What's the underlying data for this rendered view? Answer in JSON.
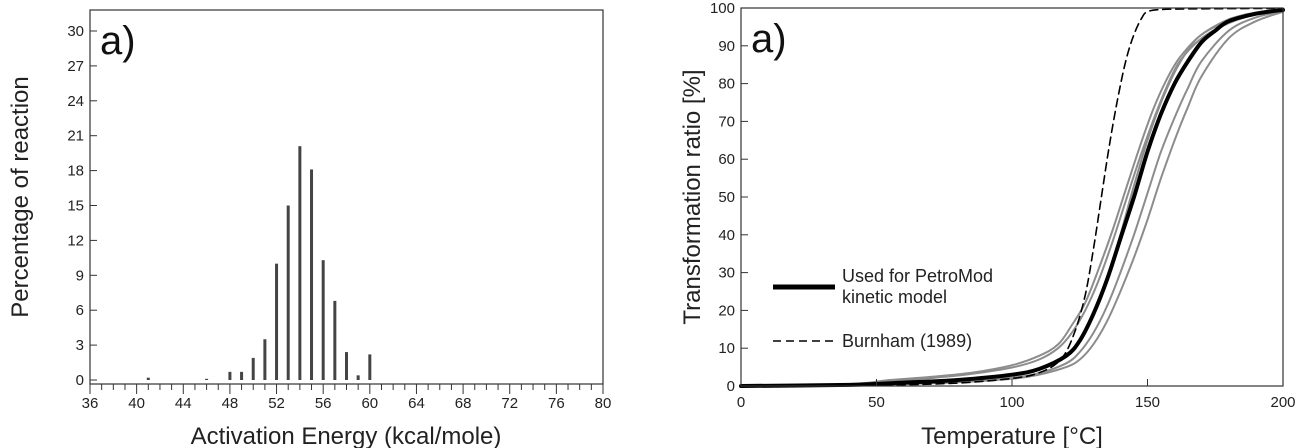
{
  "chart_data": [
    {
      "type": "bar",
      "panel_label": "a)",
      "xlabel": "Activation Energy (kcal/mole)",
      "ylabel": "Percentage of reaction",
      "xlim": [
        36,
        80
      ],
      "ylim": [
        0,
        30
      ],
      "xticks": [
        "36",
        "40",
        "44",
        "48",
        "52",
        "56",
        "60",
        "64",
        "68",
        "72",
        "76",
        "80"
      ],
      "yticks": [
        "0",
        "3",
        "6",
        "9",
        "12",
        "15",
        "18",
        "21",
        "24",
        "27",
        "30"
      ],
      "grid": false,
      "x": [
        41,
        46,
        48,
        49,
        50,
        51,
        52,
        53,
        54,
        55,
        56,
        57,
        58,
        59,
        60
      ],
      "values": [
        0.2,
        0.1,
        0.7,
        0.7,
        1.9,
        3.5,
        10.0,
        15.0,
        20.1,
        18.1,
        10.3,
        6.8,
        2.4,
        0.4,
        2.2
      ]
    },
    {
      "type": "line",
      "panel_label": "a)",
      "xlabel": "Temperature [°C]",
      "ylabel": "Transformation ratio [%]",
      "xlim": [
        0,
        200
      ],
      "ylim": [
        0,
        100
      ],
      "xticks": [
        "0",
        "50",
        "100",
        "150",
        "200"
      ],
      "yticks": [
        "0",
        "10",
        "20",
        "30",
        "40",
        "50",
        "60",
        "70",
        "80",
        "90",
        "100"
      ],
      "grid": false,
      "legend_placement": "center-left",
      "legend": [
        {
          "label_line1": "Used for PetroMod",
          "label_line2": "kinetic model",
          "style": "thick-solid",
          "color": "#000000"
        },
        {
          "label_line1": "Burnham (1989)",
          "label_line2": "",
          "style": "dashed",
          "color": "#000000"
        }
      ],
      "series": [
        {
          "style": "thick-solid",
          "color": "#000000",
          "x": [
            0,
            40,
            60,
            80,
            100,
            110,
            120,
            125,
            130,
            135,
            140,
            145,
            150,
            155,
            160,
            165,
            170,
            175,
            180,
            190,
            200
          ],
          "y": [
            0,
            0.3,
            0.9,
            1.6,
            3,
            4.5,
            8,
            12,
            19,
            28,
            39,
            50,
            62,
            72,
            80,
            86,
            91,
            94,
            96.5,
            98.5,
            99.5
          ]
        },
        {
          "style": "dashed",
          "color": "#000000",
          "x": [
            0,
            50,
            80,
            100,
            110,
            118,
            123,
            127,
            130,
            133,
            136,
            139,
            142,
            145,
            148,
            150,
            155,
            170,
            200
          ],
          "y": [
            0,
            0.2,
            0.8,
            2,
            3.5,
            7,
            14,
            24,
            36,
            50,
            64,
            76,
            86,
            93,
            97.5,
            99,
            99.6,
            99.8,
            99.9
          ]
        },
        {
          "style": "thin-solid",
          "color": "#8c8c8c",
          "x": [
            0,
            40,
            55,
            70,
            85,
            100,
            110,
            117,
            122,
            127,
            132,
            137,
            142,
            147,
            152,
            157,
            162,
            170,
            180,
            190,
            200
          ],
          "y": [
            0,
            0.5,
            1.6,
            2.4,
            3.5,
            5.5,
            8,
            11,
            16,
            22,
            31,
            41,
            52,
            63,
            73,
            81,
            87,
            93,
            96.5,
            98.5,
            99.5
          ]
        },
        {
          "style": "thin-solid",
          "color": "#8c8c8c",
          "x": [
            0,
            40,
            55,
            70,
            85,
            100,
            110,
            117,
            122,
            127,
            132,
            137,
            142,
            147,
            152,
            157,
            162,
            170,
            180,
            190,
            200
          ],
          "y": [
            0,
            0.4,
            1.3,
            2.1,
            3.2,
            4.9,
            7,
            10,
            14,
            20,
            28,
            38,
            49,
            60,
            70,
            79,
            86,
            92,
            96,
            98.3,
            99.4
          ]
        },
        {
          "style": "thin-solid",
          "color": "#8c8c8c",
          "x": [
            0,
            40,
            60,
            80,
            100,
            110,
            120,
            125,
            130,
            135,
            140,
            145,
            150,
            155,
            160,
            165,
            170,
            180,
            190,
            200
          ],
          "y": [
            0,
            0.2,
            0.6,
            1.2,
            2.2,
            3.4,
            6,
            9,
            14,
            21,
            30,
            40,
            51,
            62,
            71,
            79,
            86,
            94,
            97.5,
            99.2
          ]
        },
        {
          "style": "thin-solid",
          "color": "#8c8c8c",
          "x": [
            0,
            40,
            60,
            80,
            100,
            110,
            120,
            125,
            130,
            135,
            140,
            145,
            150,
            155,
            160,
            165,
            170,
            180,
            190,
            200
          ],
          "y": [
            0,
            0.2,
            0.5,
            1,
            1.9,
            3,
            5,
            7,
            11,
            17,
            25,
            34,
            44,
            55,
            65,
            74,
            82,
            92,
            96.5,
            99
          ]
        },
        {
          "style": "thin-solid",
          "color": "#8c8c8c",
          "x": [
            0,
            40,
            60,
            80,
            100,
            110,
            120,
            125,
            130,
            135,
            140,
            145,
            150,
            155,
            160,
            165,
            170,
            180,
            190,
            200
          ],
          "y": [
            0,
            0.3,
            0.8,
            1.5,
            3,
            4.5,
            8,
            12,
            19,
            28,
            40,
            53,
            65,
            75,
            83,
            89,
            93,
            97,
            98.8,
            99.6
          ]
        }
      ]
    }
  ]
}
